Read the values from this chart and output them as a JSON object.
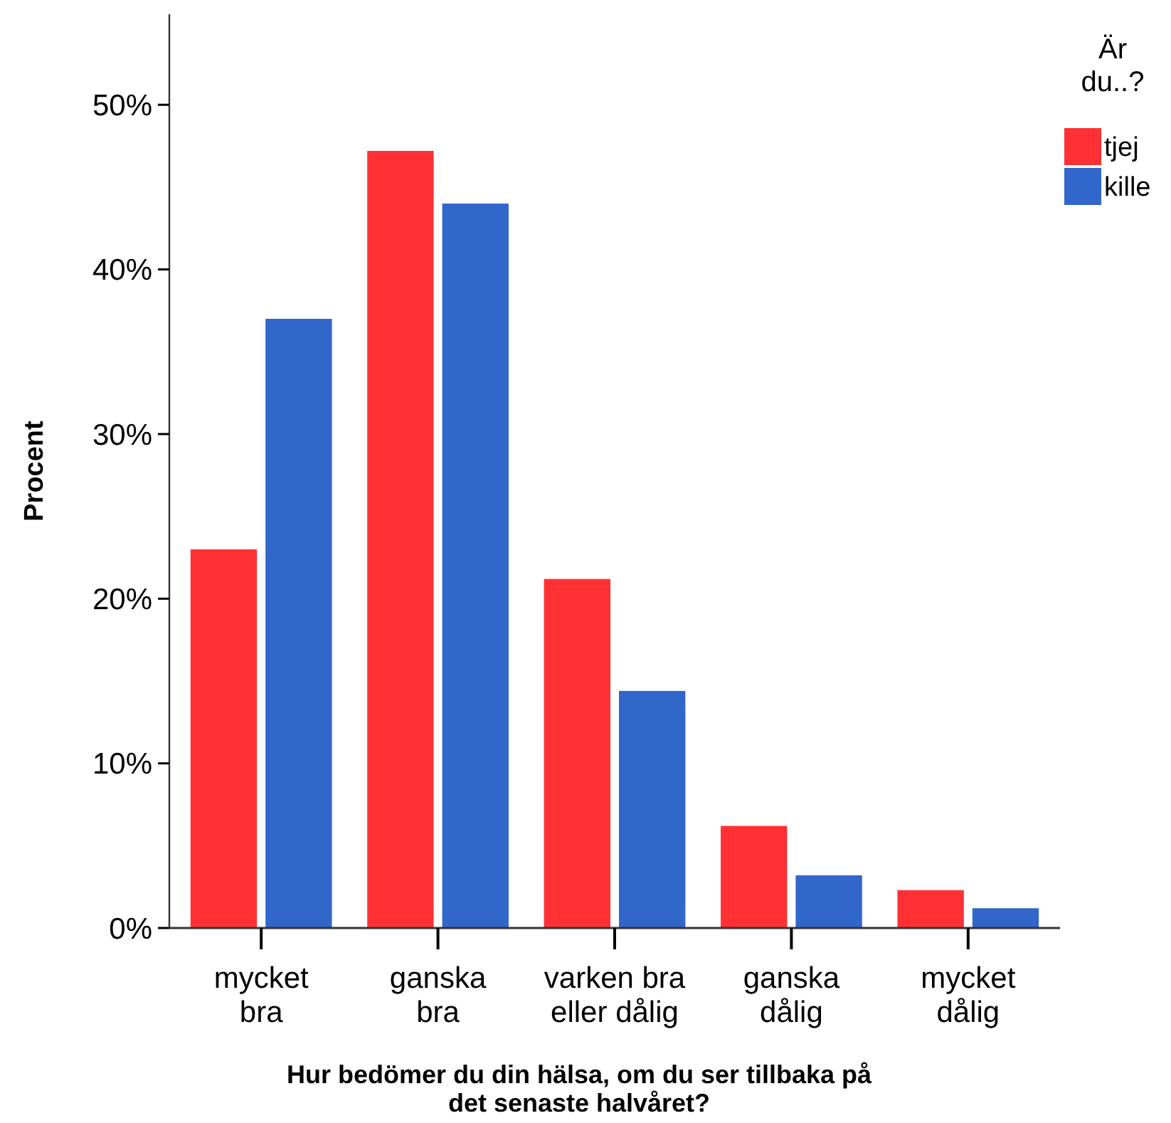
{
  "chart_data": {
    "type": "bar",
    "xlabel": "Hur bedömer du din hälsa, om du ser tillbaka på\ndet senaste halvåret?",
    "ylabel": "Procent",
    "legend_title": "Är\ndu..?",
    "categories": [
      "mycket\nbra",
      "ganska\nbra",
      "varken bra\neller dålig",
      "ganska\ndålig",
      "mycket\ndålig"
    ],
    "series": [
      {
        "name": "tjej",
        "color": "#ff3134",
        "values": [
          23.0,
          47.2,
          21.2,
          6.2,
          2.3
        ]
      },
      {
        "name": "kille",
        "color": "#3166cb",
        "values": [
          37.0,
          44.0,
          14.4,
          3.2,
          1.2
        ]
      }
    ],
    "ylim": [
      0,
      55.5
    ],
    "yticks": [
      {
        "value": 0,
        "label": "0%"
      },
      {
        "value": 10,
        "label": "10%"
      },
      {
        "value": 20,
        "label": "20%"
      },
      {
        "value": 30,
        "label": "30%"
      },
      {
        "value": 40,
        "label": "40%"
      },
      {
        "value": 50,
        "label": "50%"
      }
    ],
    "legend": "top right",
    "grid": false
  }
}
